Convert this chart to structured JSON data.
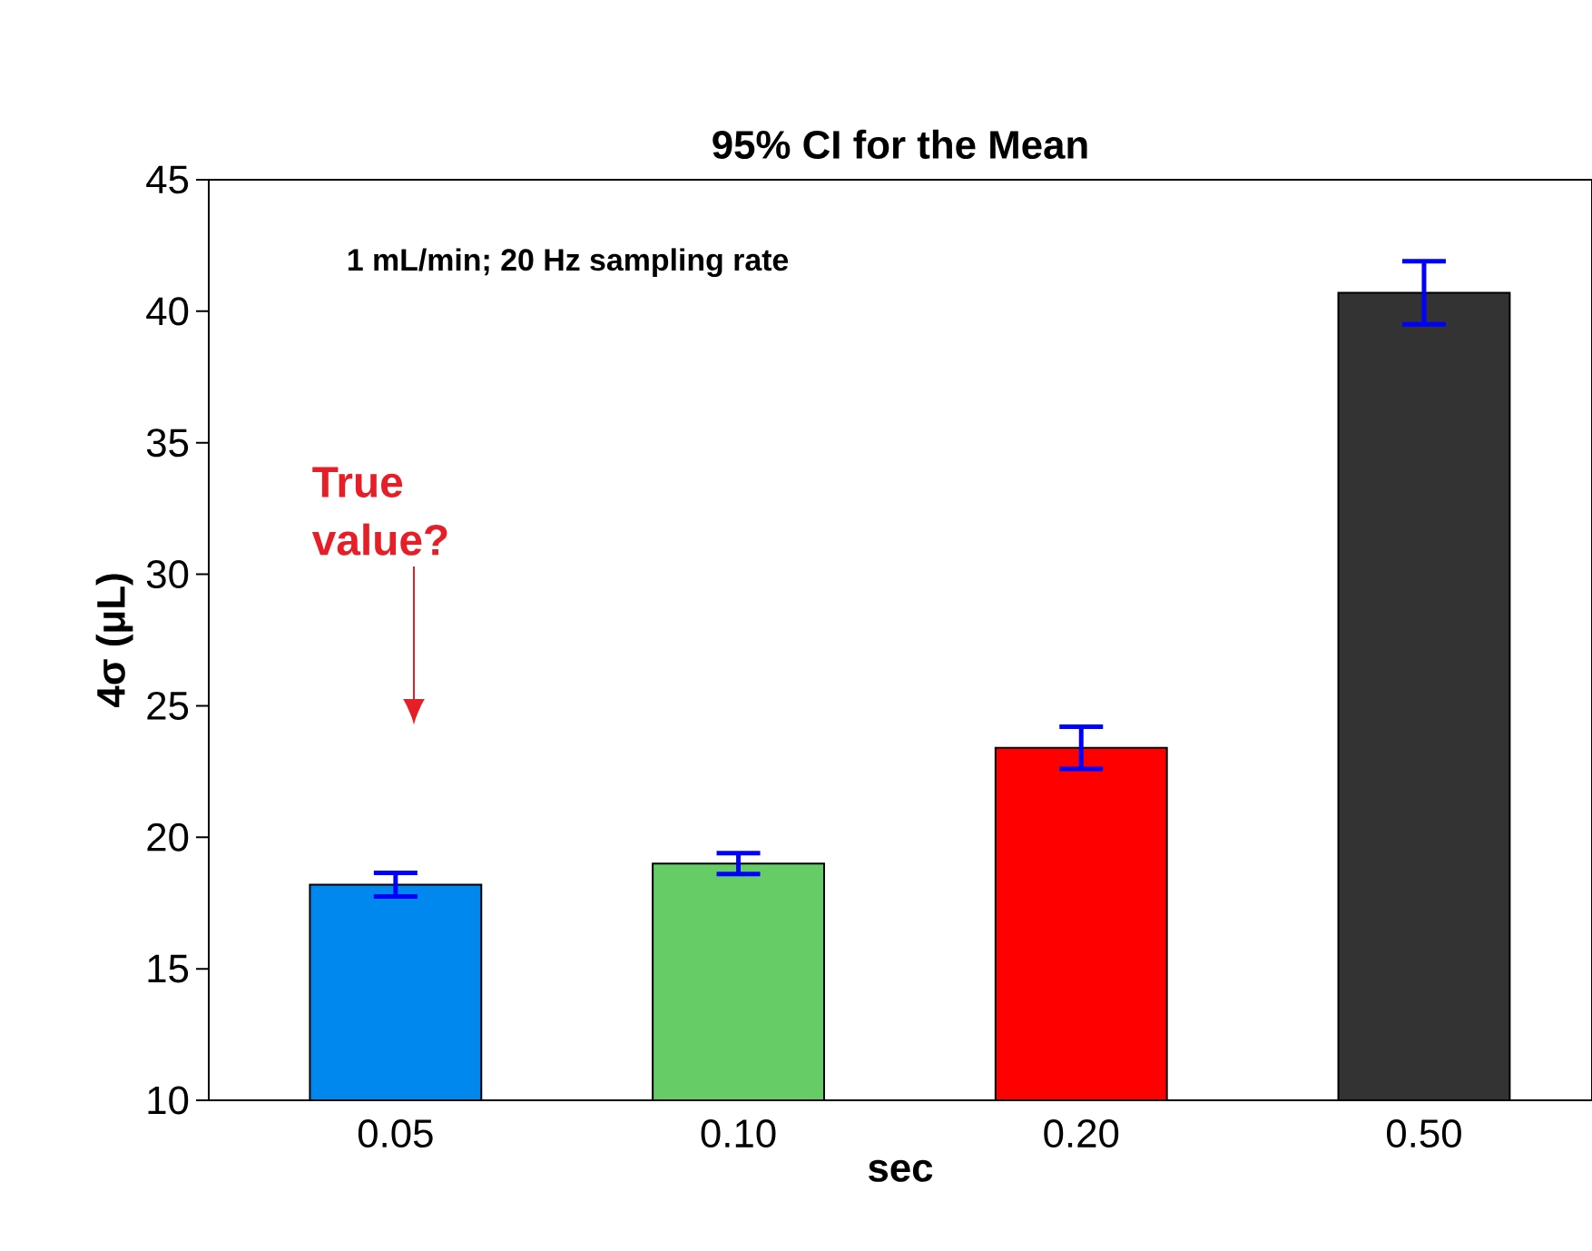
{
  "chart_data": {
    "type": "bar",
    "title": "95% CI for the Mean",
    "subtitle": "1 mL/min; 20 Hz sampling rate",
    "xlabel": "sec",
    "ylabel": "4σ (μL)",
    "categories": [
      "0.05",
      "0.10",
      "0.20",
      "0.50"
    ],
    "values": [
      18.2,
      19.0,
      23.4,
      40.7
    ],
    "errors": [
      0.45,
      0.4,
      0.8,
      1.2
    ],
    "colors": [
      "#0088ee",
      "#66cc66",
      "#ff0000",
      "#333333"
    ],
    "annotations": [
      "True value?"
    ],
    "ylim": [
      10,
      45
    ],
    "yticks": [
      10,
      15,
      20,
      25,
      30,
      35,
      40,
      45
    ],
    "grid": false
  }
}
